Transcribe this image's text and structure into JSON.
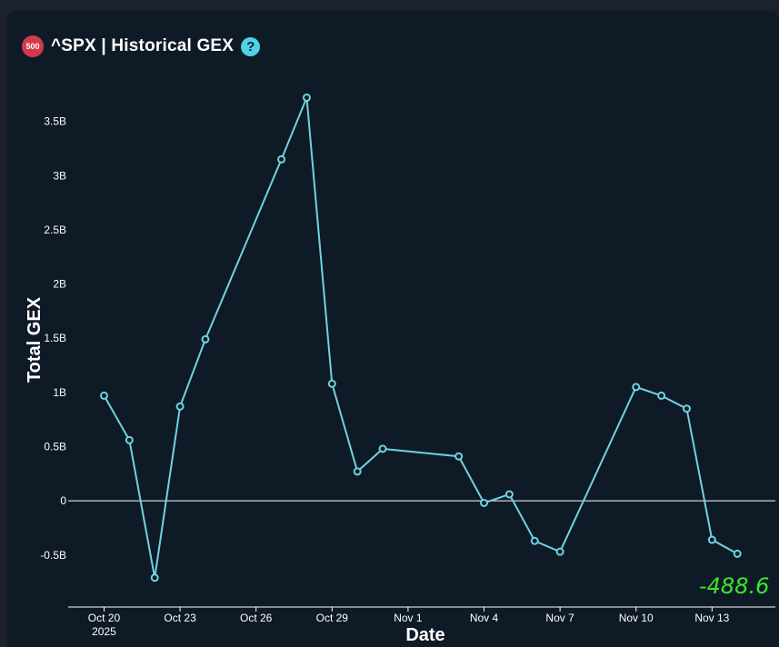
{
  "header": {
    "badge_text": "500",
    "title": "^SPX | Historical GEX",
    "help_symbol": "?"
  },
  "colors": {
    "background": "#0f1a27",
    "line": "#6fd3df",
    "badge": "#d23a4a",
    "help": "#4fd2e6",
    "annotation": "#39e62e"
  },
  "chart_data": {
    "type": "line",
    "xlabel": "Date",
    "ylabel": "Total GEX",
    "ylim": [
      -0.98,
      3.95
    ],
    "y_unit": "B",
    "y_ticks": [
      {
        "value": 3.5,
        "label": "3.5B"
      },
      {
        "value": 3,
        "label": "3B"
      },
      {
        "value": 2.5,
        "label": "2.5B"
      },
      {
        "value": 2,
        "label": "2B"
      },
      {
        "value": 1.5,
        "label": "1.5B"
      },
      {
        "value": 1,
        "label": "1B"
      },
      {
        "value": 0.5,
        "label": "0.5B"
      },
      {
        "value": 0,
        "label": "0"
      },
      {
        "value": -0.5,
        "label": "-0.5B"
      }
    ],
    "x_ticks": [
      {
        "date": "2025-10-20",
        "label": "Oct 20",
        "sublabel": "2025"
      },
      {
        "date": "2025-10-23",
        "label": "Oct 23"
      },
      {
        "date": "2025-10-26",
        "label": "Oct 26"
      },
      {
        "date": "2025-10-29",
        "label": "Oct 29"
      },
      {
        "date": "2025-11-01",
        "label": "Nov 1"
      },
      {
        "date": "2025-11-04",
        "label": "Nov 4"
      },
      {
        "date": "2025-11-07",
        "label": "Nov 7"
      },
      {
        "date": "2025-11-10",
        "label": "Nov 10"
      },
      {
        "date": "2025-11-13",
        "label": "Nov 13"
      }
    ],
    "xlim": [
      "2025-10-18 14:00",
      "2025-11-15 12:00"
    ],
    "zero_line": true,
    "points": [
      {
        "x": "2025-10-20",
        "y": 0.97
      },
      {
        "x": "2025-10-21",
        "y": 0.56
      },
      {
        "x": "2025-10-22",
        "y": -0.71
      },
      {
        "x": "2025-10-23",
        "y": 0.87
      },
      {
        "x": "2025-10-24",
        "y": 1.49
      },
      {
        "x": "2025-10-27",
        "y": 3.15
      },
      {
        "x": "2025-10-28",
        "y": 3.72
      },
      {
        "x": "2025-10-29",
        "y": 1.08
      },
      {
        "x": "2025-10-30",
        "y": 0.27
      },
      {
        "x": "2025-10-31",
        "y": 0.48
      },
      {
        "x": "2025-11-03",
        "y": 0.41
      },
      {
        "x": "2025-11-04",
        "y": -0.02
      },
      {
        "x": "2025-11-05",
        "y": 0.06
      },
      {
        "x": "2025-11-06",
        "y": -0.37
      },
      {
        "x": "2025-11-07",
        "y": -0.47
      },
      {
        "x": "2025-11-10",
        "y": 1.05
      },
      {
        "x": "2025-11-11",
        "y": 0.97
      },
      {
        "x": "2025-11-12",
        "y": 0.85
      },
      {
        "x": "2025-11-13",
        "y": -0.36
      },
      {
        "x": "2025-11-14",
        "y": -0.4886
      }
    ],
    "annotation": "-488.6"
  }
}
